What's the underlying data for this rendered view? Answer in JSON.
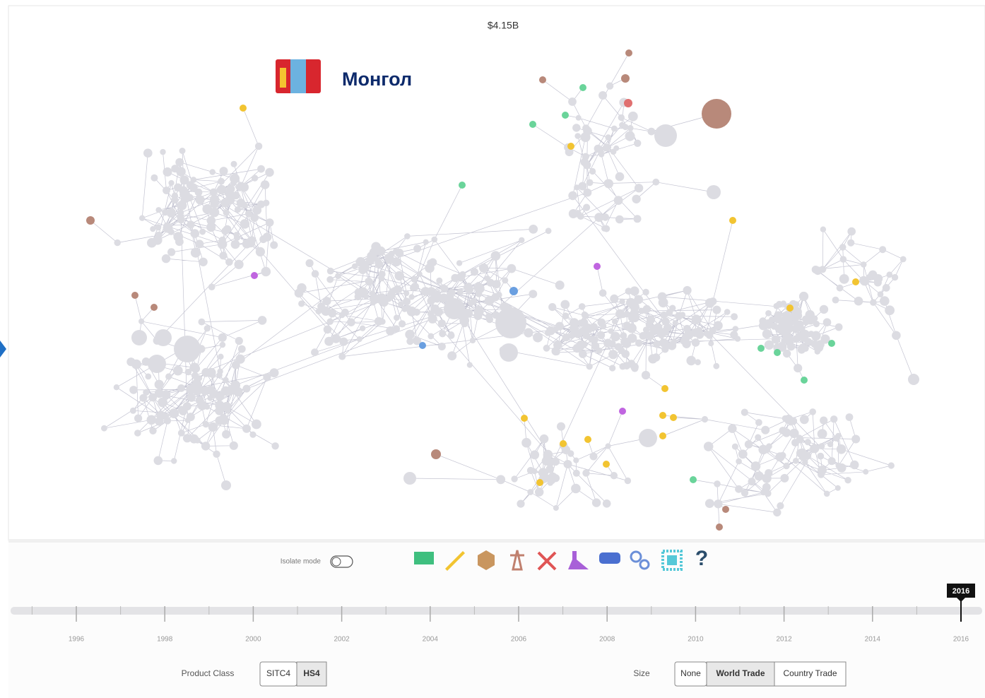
{
  "value": "$4.15B",
  "country": "Монгол",
  "isolate_label": "Isolate mode",
  "help": "?",
  "timeline": {
    "years": [
      1996,
      1998,
      2000,
      2002,
      2004,
      2006,
      2008,
      2010,
      2012,
      2014,
      2016
    ],
    "selected": 2016
  },
  "product_class": {
    "label": "Product Class",
    "options": [
      "SITC4",
      "HS4"
    ],
    "active": 1
  },
  "size": {
    "label": "Size",
    "options": [
      "None",
      "World Trade",
      "Country Trade"
    ],
    "active": 1
  }
}
